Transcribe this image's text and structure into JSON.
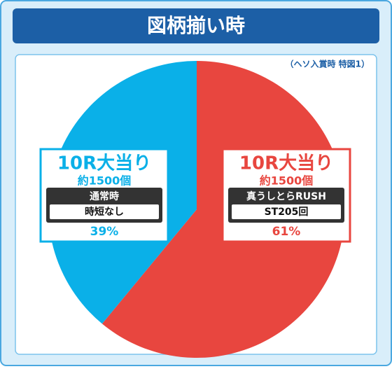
{
  "chart_data": {
    "type": "pie",
    "title": "図柄揃い時",
    "note": "（ヘソ入賞時 特図1）",
    "values": [
      61,
      39
    ],
    "value_labels": [
      "61%",
      "39%"
    ],
    "colors": [
      "#e8463f",
      "#0ab0e8"
    ],
    "slices": [
      {
        "name": "10R大当り",
        "count": "約1500個",
        "mode": "真うしとらRUSH",
        "detail": "ST205回"
      },
      {
        "name": "10R大当り",
        "count": "約1500個",
        "mode": "通常時",
        "detail": "時短なし"
      }
    ]
  }
}
